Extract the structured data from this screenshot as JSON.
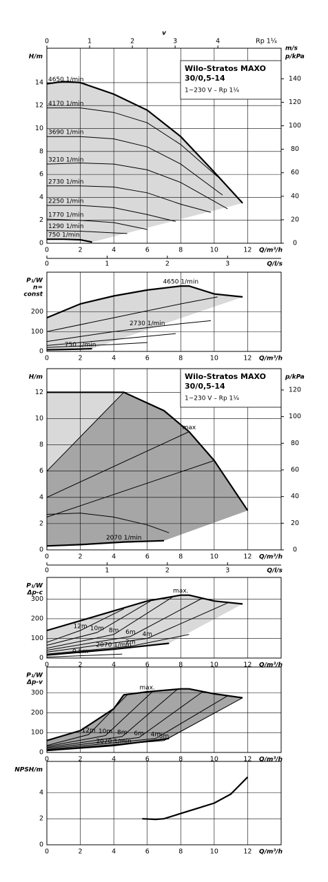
{
  "chart_data": [
    {
      "type": "line",
      "color": "#000000",
      "shade": "#d9d9d9",
      "grid": true,
      "xlabel": "Q/m³/h",
      "xlim": [
        0,
        14
      ],
      "xticks": [
        0,
        2,
        4,
        6,
        8,
        10,
        12
      ],
      "ylabel": [
        "H/m"
      ],
      "ylim": [
        0,
        17
      ],
      "yticks": [
        0,
        2,
        4,
        6,
        8,
        10,
        12,
        14
      ],
      "y2label": "p/kPa",
      "y2lim": [
        0,
        166
      ],
      "y2ticks": [
        0,
        20,
        40,
        60,
        80,
        100,
        120,
        140
      ],
      "toplabel": "m/s",
      "topname": "v",
      "topnote": "Rp 1¼",
      "toplim": [
        0,
        5.48
      ],
      "topticks": [
        0,
        1,
        2,
        3,
        4
      ],
      "x2label": "Q/l/s",
      "x2lim": [
        0,
        3.889
      ],
      "x2ticks": [
        0,
        1,
        2,
        3
      ],
      "box": {
        "title": [
          "Wilo-Stratos MAXO",
          "30/0,5-14"
        ],
        "subtitle": "1~230 V – Rp 1¼"
      },
      "series": [
        {
          "name": "4650 1/min",
          "x": [
            0,
            1,
            2,
            4,
            6,
            8,
            10,
            11.7
          ],
          "values": [
            13.9,
            14.1,
            14.0,
            13.0,
            11.6,
            9.3,
            6.2,
            3.5
          ]
        },
        {
          "name": "4170 1/min",
          "x": [
            0,
            2,
            4,
            6,
            8,
            10.2
          ],
          "values": [
            11.8,
            11.8,
            11.4,
            10.5,
            8.6,
            5.8
          ]
        },
        {
          "name": "3690 1/min",
          "x": [
            0,
            2,
            4,
            6,
            8,
            10.5
          ],
          "values": [
            9.3,
            9.3,
            9.1,
            8.4,
            6.9,
            4.2
          ]
        },
        {
          "name": "3210 1/min",
          "x": [
            0,
            2,
            4,
            6,
            8,
            10.8
          ],
          "values": [
            6.9,
            7.0,
            6.9,
            6.4,
            5.3,
            3.0
          ]
        },
        {
          "name": "2730 1/min",
          "x": [
            0,
            2,
            4,
            6,
            8,
            9.8
          ],
          "values": [
            5.0,
            5.0,
            4.9,
            4.4,
            3.4,
            2.7
          ]
        },
        {
          "name": "2250 1/min",
          "x": [
            0,
            2,
            4,
            6,
            7.7
          ],
          "values": [
            3.3,
            3.3,
            3.1,
            2.5,
            1.9
          ]
        },
        {
          "name": "1770 1/min",
          "x": [
            0,
            2,
            4,
            6
          ],
          "values": [
            2.1,
            2.0,
            1.8,
            1.2
          ]
        },
        {
          "name": "1290 1/min",
          "x": [
            0,
            2,
            4,
            4.8
          ],
          "values": [
            1.1,
            1.05,
            0.9,
            0.85
          ]
        },
        {
          "name": "750 1/min",
          "x": [
            0,
            1,
            2,
            2.7
          ],
          "values": [
            0.35,
            0.35,
            0.3,
            0.1
          ]
        }
      ]
    },
    {
      "type": "line",
      "color": "#000000",
      "shade": "#d9d9d9",
      "grid": true,
      "xlabel": "Q/m³/h",
      "xlim": [
        0,
        14
      ],
      "xticks": [
        0,
        2,
        4,
        6,
        8,
        10,
        12
      ],
      "ylabel": [
        "P₁/W",
        "n=",
        "const"
      ],
      "ylim": [
        0,
        400
      ],
      "yticks": [
        0,
        100,
        200
      ],
      "series": [
        {
          "name": "4650 1/min",
          "x": [
            0,
            2,
            4,
            6,
            8,
            8.5,
            10,
            11.7
          ],
          "values": [
            170,
            240,
            280,
            310,
            330,
            330,
            290,
            275
          ]
        },
        {
          "x": [
            0,
            4,
            8,
            10.2
          ],
          "values": [
            100,
            170,
            240,
            275
          ]
        },
        {
          "name": "2730 1/min",
          "x": [
            0,
            2,
            4,
            6,
            8,
            9.8
          ],
          "values": [
            50,
            75,
            100,
            120,
            140,
            155
          ]
        },
        {
          "x": [
            0,
            4,
            7.7
          ],
          "values": [
            30,
            60,
            90
          ]
        },
        {
          "x": [
            0,
            4,
            6
          ],
          "values": [
            20,
            35,
            45
          ]
        },
        {
          "name": "750 1/min",
          "x": [
            0,
            2,
            2.7
          ],
          "values": [
            8,
            12,
            14
          ]
        }
      ]
    },
    {
      "type": "line",
      "color": "#000000",
      "shade": "#d9d9d9",
      "shade2": "#a6a6a6",
      "grid": true,
      "xlabel": "Q/m³/h",
      "xlim": [
        0,
        14
      ],
      "xticks": [
        0,
        2,
        4,
        6,
        8,
        10,
        12
      ],
      "ylabel": [
        "H/m"
      ],
      "ylim": [
        0,
        13.8
      ],
      "yticks": [
        0,
        2,
        4,
        6,
        8,
        10,
        12
      ],
      "y2label": "p/kPa",
      "y2lim": [
        0,
        136
      ],
      "y2ticks": [
        0,
        20,
        40,
        60,
        80,
        100,
        120
      ],
      "x2label": "Q/l/s",
      "x2lim": [
        0,
        3.889
      ],
      "x2ticks": [
        0,
        1,
        2,
        3
      ],
      "box": {
        "title": [
          "Wilo-Stratos MAXO",
          "30/0,5-14"
        ],
        "subtitle": "1~230 V – Rp 1¼"
      },
      "series": [
        {
          "name": "max",
          "x": [
            0,
            4.6,
            7,
            8.5,
            10,
            12
          ],
          "values": [
            12,
            12,
            10.6,
            9,
            6.8,
            3
          ]
        },
        {
          "x": [
            0,
            4.6,
            7,
            8.5,
            10,
            12
          ],
          "values": [
            6,
            12,
            10.6,
            9,
            6.8,
            3
          ]
        },
        {
          "x": [
            0,
            8.5
          ],
          "values": [
            4,
            9
          ]
        },
        {
          "x": [
            0,
            10
          ],
          "values": [
            2.5,
            6.8
          ]
        },
        {
          "x": [
            0,
            2,
            4,
            6,
            7.3
          ],
          "values": [
            2.7,
            2.8,
            2.5,
            1.9,
            1.3
          ]
        },
        {
          "name": "2070 1/min",
          "x": [
            0,
            2,
            4.6,
            7
          ],
          "values": [
            0.3,
            0.4,
            0.6,
            0.7
          ]
        }
      ]
    },
    {
      "type": "line",
      "color": "#000000",
      "shade": "#d9d9d9",
      "grid": true,
      "xlabel": "Q/m³/h",
      "xlim": [
        0,
        14
      ],
      "xticks": [
        0,
        2,
        4,
        6,
        8,
        10,
        12
      ],
      "ylabel": [
        "P₁/W",
        "Δp-c"
      ],
      "ylim": [
        0,
        410
      ],
      "yticks": [
        0,
        100,
        200,
        300
      ],
      "series": [
        {
          "name": "max.",
          "x": [
            0,
            2,
            4,
            6,
            8,
            8.5,
            10,
            11.7
          ],
          "values": [
            140,
            190,
            240,
            290,
            320,
            320,
            290,
            275
          ]
        },
        {
          "name": "12m",
          "x": [
            0,
            2,
            4.6
          ],
          "values": [
            80,
            140,
            250
          ]
        },
        {
          "name": "10m",
          "x": [
            0,
            3,
            6.2
          ],
          "values": [
            65,
            130,
            290
          ]
        },
        {
          "name": "8m",
          "x": [
            0,
            4,
            7.6
          ],
          "values": [
            50,
            120,
            315
          ]
        },
        {
          "name": "6m",
          "x": [
            0,
            5,
            9.3
          ],
          "values": [
            40,
            110,
            305
          ]
        },
        {
          "name": "4m",
          "x": [
            0,
            6,
            10.8
          ],
          "values": [
            30,
            100,
            280
          ]
        },
        {
          "name": "2m",
          "x": [
            0,
            5,
            8.5
          ],
          "values": [
            20,
            60,
            120
          ]
        },
        {
          "name": "0.5m",
          "x": [
            0,
            2,
            4.5
          ],
          "values": [
            5,
            12,
            20
          ]
        },
        {
          "name": "2070 1/min",
          "x": [
            0,
            4,
            7.3
          ],
          "values": [
            15,
            45,
            75
          ]
        }
      ]
    },
    {
      "type": "line",
      "color": "#000000",
      "shade": "#a6a6a6",
      "grid": true,
      "xlabel": "Q/m³/h",
      "xlim": [
        0,
        14
      ],
      "xticks": [
        0,
        2,
        4,
        6,
        8,
        10,
        12
      ],
      "ylabel": [
        "P₁/W",
        "Δp-v"
      ],
      "ylim": [
        0,
        430
      ],
      "yticks": [
        0,
        100,
        200,
        300
      ],
      "series": [
        {
          "name": "max.",
          "x": [
            0,
            2,
            4,
            4.6,
            6,
            8,
            8.5,
            10,
            11.7
          ],
          "values": [
            60,
            110,
            220,
            290,
            305,
            320,
            320,
            295,
            275
          ]
        },
        {
          "name": "12m",
          "x": [
            0,
            2.5,
            4.8
          ],
          "values": [
            35,
            90,
            290
          ]
        },
        {
          "name": "10m",
          "x": [
            0,
            3.5,
            6.3
          ],
          "values": [
            30,
            85,
            305
          ]
        },
        {
          "name": "8m",
          "x": [
            0,
            4.5,
            7.8
          ],
          "values": [
            25,
            80,
            318
          ]
        },
        {
          "name": "6m",
          "x": [
            0,
            5.5,
            9.3
          ],
          "values": [
            20,
            75,
            305
          ]
        },
        {
          "name": "4m",
          "x": [
            0,
            6.5,
            10.8
          ],
          "values": [
            15,
            70,
            285
          ]
        },
        {
          "name": "3m",
          "x": [
            0,
            7,
            11.7
          ],
          "values": [
            12,
            60,
            275
          ]
        },
        {
          "name": "2070 1/min",
          "x": [
            0,
            4,
            7.3
          ],
          "values": [
            10,
            35,
            70
          ]
        }
      ]
    },
    {
      "type": "line",
      "color": "#000000",
      "grid": true,
      "xlabel": "Q/m³/h",
      "xlim": [
        0,
        14
      ],
      "xticks": [
        0,
        2,
        4,
        6,
        8,
        10,
        12
      ],
      "ylabel": [
        "NPSH/m"
      ],
      "ylim": [
        0,
        6.4
      ],
      "yticks": [
        0,
        2,
        4
      ],
      "series": [
        {
          "x": [
            5.7,
            6.5,
            7,
            8,
            9,
            10,
            11,
            12
          ],
          "values": [
            2,
            1.95,
            2,
            2.4,
            2.8,
            3.2,
            3.9,
            5.2
          ]
        }
      ]
    }
  ]
}
